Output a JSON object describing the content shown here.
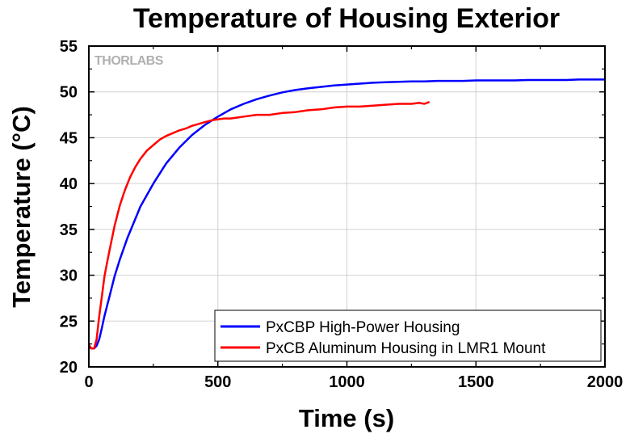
{
  "chart_data": {
    "type": "line",
    "title": "Temperature of Housing Exterior",
    "xlabel": "Time (s)",
    "ylabel": "Temperature (°C)",
    "xlim": [
      0,
      2000
    ],
    "ylim": [
      20,
      55
    ],
    "x_ticks": [
      0,
      500,
      1000,
      1500,
      2000
    ],
    "y_ticks": [
      20,
      25,
      30,
      35,
      40,
      45,
      50,
      55
    ],
    "grid": true,
    "watermark": "THORLABS",
    "legend_position": "bottom-right",
    "series": [
      {
        "name": "PxCBP High-Power Housing",
        "color": "#0000ff",
        "x": [
          0,
          10,
          20,
          30,
          40,
          50,
          60,
          80,
          100,
          120,
          150,
          200,
          250,
          300,
          350,
          400,
          450,
          500,
          550,
          600,
          650,
          700,
          750,
          800,
          850,
          900,
          950,
          1000,
          1050,
          1100,
          1150,
          1200,
          1250,
          1300,
          1350,
          1400,
          1450,
          1500,
          1550,
          1600,
          1650,
          1700,
          1750,
          1800,
          1850,
          1900,
          1950,
          2000
        ],
        "y": [
          22.2,
          22.0,
          22.0,
          22.3,
          23.0,
          24.2,
          25.5,
          27.7,
          29.9,
          31.7,
          34.1,
          37.5,
          40.0,
          42.2,
          43.9,
          45.3,
          46.4,
          47.3,
          48.1,
          48.7,
          49.2,
          49.6,
          49.95,
          50.2,
          50.4,
          50.55,
          50.7,
          50.8,
          50.9,
          51.0,
          51.05,
          51.1,
          51.15,
          51.15,
          51.2,
          51.2,
          51.2,
          51.25,
          51.25,
          51.25,
          51.25,
          51.3,
          51.3,
          51.3,
          51.3,
          51.35,
          51.35,
          51.35
        ]
      },
      {
        "name": "PxCB Aluminum Housing in LMR1 Mount",
        "color": "#ff0000",
        "x": [
          0,
          10,
          20,
          30,
          40,
          50,
          60,
          70,
          80,
          100,
          120,
          140,
          160,
          180,
          200,
          225,
          250,
          275,
          300,
          325,
          350,
          375,
          400,
          425,
          450,
          475,
          500,
          525,
          550,
          575,
          600,
          650,
          700,
          750,
          800,
          850,
          900,
          950,
          1000,
          1050,
          1100,
          1150,
          1200,
          1250,
          1280,
          1300,
          1320
        ],
        "y": [
          22.4,
          22.0,
          22.0,
          23.0,
          25.5,
          27.6,
          29.8,
          31.3,
          32.7,
          35.4,
          37.6,
          39.3,
          40.7,
          41.8,
          42.7,
          43.6,
          44.2,
          44.8,
          45.2,
          45.5,
          45.8,
          46.0,
          46.3,
          46.5,
          46.7,
          46.9,
          47.0,
          47.1,
          47.1,
          47.2,
          47.3,
          47.5,
          47.5,
          47.7,
          47.8,
          48.0,
          48.1,
          48.3,
          48.4,
          48.4,
          48.5,
          48.6,
          48.7,
          48.7,
          48.8,
          48.7,
          48.9
        ]
      }
    ]
  }
}
